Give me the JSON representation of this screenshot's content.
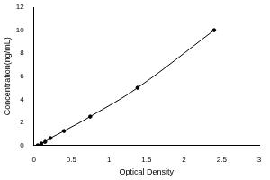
{
  "chart_data": {
    "type": "scatter",
    "x_label": "Optical Density",
    "y_label": "Concentration(ng/mL)",
    "x": [
      0.05,
      0.1,
      0.15,
      0.22,
      0.4,
      0.75,
      1.38,
      2.4
    ],
    "values": [
      0,
      0.16,
      0.31,
      0.63,
      1.25,
      2.5,
      5,
      10
    ],
    "color": "#000000",
    "marker": "circle",
    "line_style": "solid",
    "xlim": [
      0,
      3
    ],
    "xticks": [
      0,
      0.5,
      1,
      1.5,
      2,
      2.5,
      3
    ],
    "ylim": [
      0,
      12
    ],
    "yticks": [
      0,
      2,
      4,
      6,
      8,
      10,
      12
    ],
    "grid": false
  }
}
